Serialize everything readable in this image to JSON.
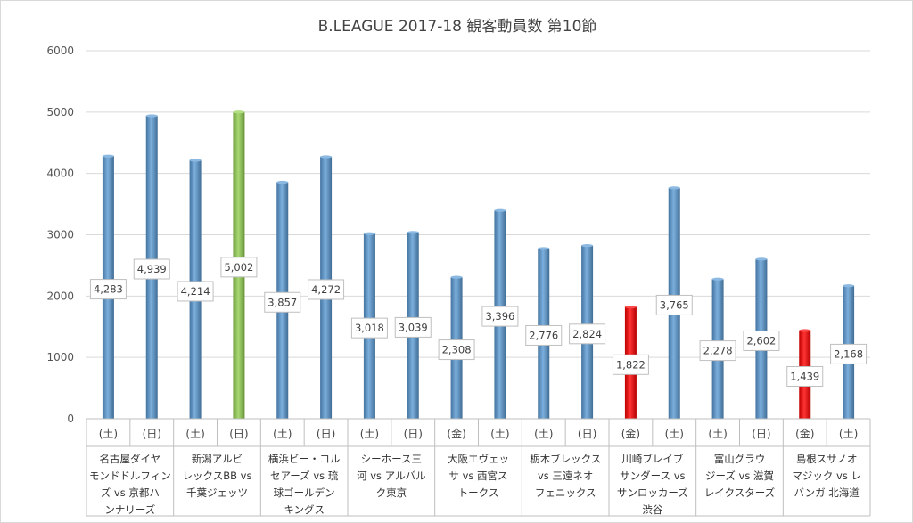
{
  "chart_data": {
    "type": "bar",
    "title": "B.LEAGUE 2017-18 観客動員数 第10節",
    "xlabel": "",
    "ylabel": "",
    "ylim": [
      0,
      6000
    ],
    "yticks": [
      0,
      1000,
      2000,
      3000,
      4000,
      5000,
      6000
    ],
    "grid": true,
    "legend": "none",
    "days": [
      "(土)",
      "(日)",
      "(土)",
      "(日)",
      "(土)",
      "(日)",
      "(土)",
      "(日)",
      "(金)",
      "(土)",
      "(土)",
      "(日)",
      "(金)",
      "(土)",
      "(土)",
      "(日)",
      "(金)",
      "(土)"
    ],
    "values": [
      4283,
      4939,
      4214,
      5002,
      3857,
      4272,
      3018,
      3039,
      2308,
      3396,
      2776,
      2824,
      1822,
      3765,
      2278,
      2602,
      1439,
      2168
    ],
    "data_labels": [
      "4,283",
      "4,939",
      "4,214",
      "5,002",
      "3,857",
      "4,272",
      "3,018",
      "3,039",
      "2,308",
      "3,396",
      "2,776",
      "2,824",
      "1,822",
      "3,765",
      "2,278",
      "2,602",
      "1,439",
      "2,168"
    ],
    "bar_colors": [
      "#5b9bd5",
      "#5b9bd5",
      "#5b9bd5",
      "#92d050",
      "#5b9bd5",
      "#5b9bd5",
      "#5b9bd5",
      "#5b9bd5",
      "#5b9bd5",
      "#5b9bd5",
      "#5b9bd5",
      "#5b9bd5",
      "#ff0000",
      "#5b9bd5",
      "#5b9bd5",
      "#5b9bd5",
      "#ff0000",
      "#5b9bd5"
    ],
    "matchups": [
      [
        "名古屋ダイヤ",
        "モンドドルフィン",
        "ズ vs 京都ハ",
        "ンナリーズ"
      ],
      [
        "新潟アルビ",
        "レックスBB vs",
        "千葉ジェッツ"
      ],
      [
        "横浜ビー・コル",
        "セアーズ vs 琉",
        "球ゴールデン",
        "キングス"
      ],
      [
        "シーホース三",
        "河 vs アルバル",
        "ク東京"
      ],
      [
        "大阪エヴェッ",
        "サ vs 西宮ス",
        "トークス"
      ],
      [
        "栃木ブレックス",
        "vs 三遠ネオ",
        "フェニックス"
      ],
      [
        "川崎ブレイブ",
        "サンダース vs",
        "サンロッカーズ",
        "渋谷"
      ],
      [
        "富山グラウ",
        "ジーズ vs 滋賀",
        "レイクスターズ"
      ],
      [
        "島根スサノオ",
        "マジック vs レ",
        "バンガ 北海道"
      ]
    ]
  }
}
